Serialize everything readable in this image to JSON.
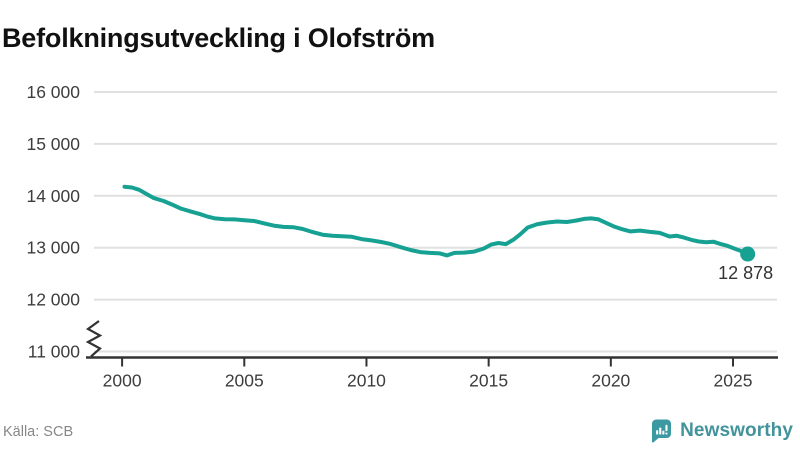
{
  "title": "Befolkningsutveckling i Olofström",
  "source": "Källa: SCB",
  "brand": {
    "name": "Newsworthy"
  },
  "colors": {
    "line": "#16a193",
    "grid": "#e0e0e0",
    "axis": "#333333",
    "tick_label": "#3d3d3d",
    "end_label": "#333333",
    "title": "#111111",
    "muted": "#878787",
    "brand_icon": "#3b99a1",
    "brand_text": "#42939b"
  },
  "chart_data": {
    "type": "line",
    "title": "Befolkningsutveckling i Olofström",
    "xlabel": "",
    "ylabel": "",
    "grid": "horizontal gridlines only",
    "legend": "none",
    "axis_break_at_bottom": true,
    "xlim": [
      1998.85,
      2026.8
    ],
    "ylim": [
      11000,
      16000
    ],
    "x_ticks": [
      2000,
      2005,
      2010,
      2015,
      2020,
      2025
    ],
    "x_tick_labels": [
      "2000",
      "2005",
      "2010",
      "2015",
      "2020",
      "2025"
    ],
    "y_ticks": [
      11000,
      12000,
      13000,
      14000,
      15000,
      16000
    ],
    "y_tick_labels": [
      "11 000",
      "12 000",
      "13 000",
      "14 000",
      "15 000",
      "16 000"
    ],
    "series": [
      {
        "name": "Befolkning i Olofström",
        "color": "#16a193",
        "points": [
          [
            2000.1,
            14175
          ],
          [
            2000.4,
            14160
          ],
          [
            2000.7,
            14115
          ],
          [
            2001.0,
            14035
          ],
          [
            2001.3,
            13955
          ],
          [
            2001.7,
            13900
          ],
          [
            2002.0,
            13840
          ],
          [
            2002.4,
            13755
          ],
          [
            2002.8,
            13700
          ],
          [
            2003.2,
            13645
          ],
          [
            2003.5,
            13600
          ],
          [
            2003.8,
            13565
          ],
          [
            2004.2,
            13550
          ],
          [
            2004.6,
            13545
          ],
          [
            2005.0,
            13530
          ],
          [
            2005.4,
            13515
          ],
          [
            2005.8,
            13470
          ],
          [
            2006.2,
            13425
          ],
          [
            2006.6,
            13400
          ],
          [
            2007.0,
            13395
          ],
          [
            2007.4,
            13360
          ],
          [
            2007.8,
            13300
          ],
          [
            2008.2,
            13250
          ],
          [
            2008.6,
            13230
          ],
          [
            2009.0,
            13222
          ],
          [
            2009.4,
            13210
          ],
          [
            2009.8,
            13165
          ],
          [
            2010.2,
            13140
          ],
          [
            2010.6,
            13110
          ],
          [
            2011.0,
            13070
          ],
          [
            2011.4,
            13010
          ],
          [
            2011.8,
            12955
          ],
          [
            2012.2,
            12915
          ],
          [
            2012.6,
            12900
          ],
          [
            2013.0,
            12890
          ],
          [
            2013.3,
            12852
          ],
          [
            2013.6,
            12900
          ],
          [
            2014.0,
            12905
          ],
          [
            2014.4,
            12925
          ],
          [
            2014.8,
            12985
          ],
          [
            2015.1,
            13060
          ],
          [
            2015.4,
            13090
          ],
          [
            2015.7,
            13070
          ],
          [
            2016.0,
            13150
          ],
          [
            2016.3,
            13260
          ],
          [
            2016.6,
            13390
          ],
          [
            2017.0,
            13455
          ],
          [
            2017.4,
            13485
          ],
          [
            2017.8,
            13505
          ],
          [
            2018.2,
            13495
          ],
          [
            2018.6,
            13525
          ],
          [
            2018.9,
            13555
          ],
          [
            2019.2,
            13565
          ],
          [
            2019.5,
            13545
          ],
          [
            2019.8,
            13480
          ],
          [
            2020.1,
            13415
          ],
          [
            2020.4,
            13365
          ],
          [
            2020.8,
            13315
          ],
          [
            2021.2,
            13330
          ],
          [
            2021.6,
            13305
          ],
          [
            2022.0,
            13285
          ],
          [
            2022.4,
            13215
          ],
          [
            2022.7,
            13230
          ],
          [
            2023.0,
            13195
          ],
          [
            2023.3,
            13150
          ],
          [
            2023.6,
            13120
          ],
          [
            2023.9,
            13105
          ],
          [
            2024.2,
            13115
          ],
          [
            2024.5,
            13070
          ],
          [
            2024.8,
            13030
          ],
          [
            2025.1,
            12975
          ],
          [
            2025.4,
            12925
          ],
          [
            2025.6,
            12878
          ]
        ]
      }
    ],
    "end_point": {
      "x": 2025.6,
      "y": 12878,
      "label": "12 878"
    }
  }
}
